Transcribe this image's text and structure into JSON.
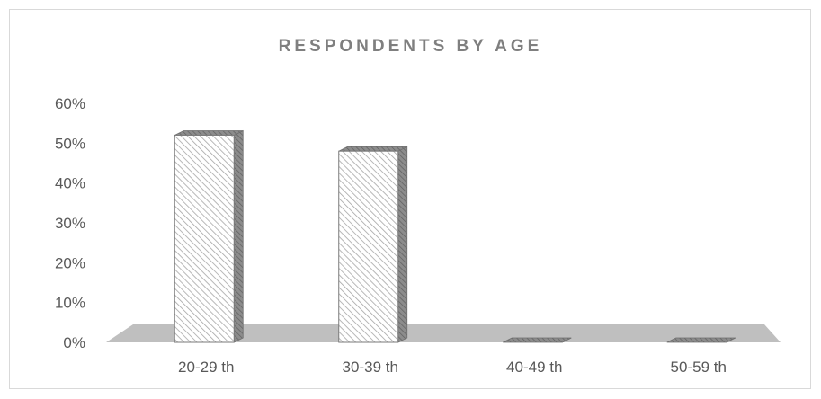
{
  "chart_data": {
    "type": "bar",
    "title": "RESPONDENTS BY AGE",
    "xlabel": "",
    "ylabel": "",
    "categories": [
      "20-29 th",
      "30-39 th",
      "40-49 th",
      "50-59 th"
    ],
    "values": [
      0.52,
      0.48,
      0.0,
      0.0
    ],
    "ylim": [
      0,
      0.6
    ],
    "yticks": [
      0,
      0.1,
      0.2,
      0.3,
      0.4,
      0.5,
      0.6
    ],
    "ytick_labels": [
      "0%",
      "10%",
      "20%",
      "30%",
      "40%",
      "50%",
      "60%"
    ],
    "grid": false,
    "legend": "none",
    "style": "3d-hatched",
    "colors": {
      "bar_front": "#ffffff",
      "hatch": "#a6a6a6",
      "bar_side": "#8c8c8c",
      "floor": "#bfbfbf",
      "text": "#595959",
      "title": "#7f7f7f",
      "border": "#d9d9d9"
    }
  }
}
